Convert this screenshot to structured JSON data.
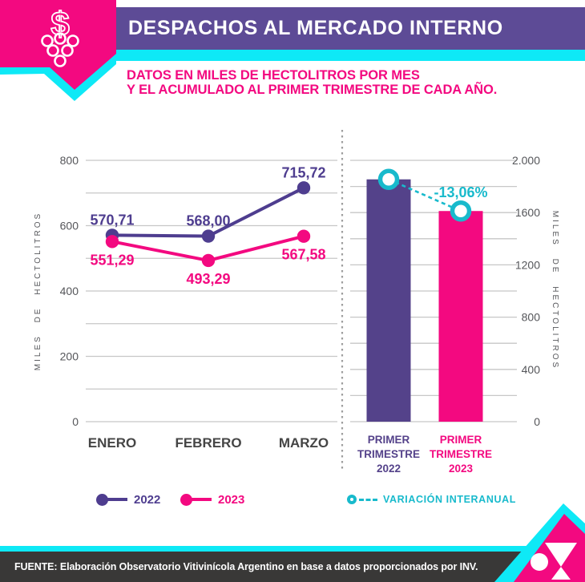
{
  "header": {
    "title": "DESPACHOS AL MERCADO INTERNO",
    "subtitle_line1": "DATOS EN MILES DE HECTOLITROS POR MES",
    "subtitle_line2": "Y EL ACUMULADO AL PRIMER TRIMESTRE DE CADA AÑO.",
    "badge_glyph": "$",
    "badge_icon": "grapes-dollar-icon"
  },
  "colors": {
    "header_purple": "#5d4b96",
    "magenta": "#f30980",
    "cyan_bright": "#0ee9f6",
    "cyan": "#18bacc",
    "series_purple": "#4e3d8f",
    "bar_purple": "#54428a",
    "grid": "#c7c7c7",
    "axis_text": "#55565a",
    "cat_text": "#454545",
    "separator": "#9e9e9e",
    "footer_bg": "#393837"
  },
  "chart_data": [
    {
      "type": "line",
      "categories": [
        "ENERO",
        "FEBRERO",
        "MARZO"
      ],
      "series": [
        {
          "name": "2022",
          "color": "#4e3d8f",
          "values": [
            570.71,
            568.0,
            715.72
          ],
          "labels": [
            "570,71",
            "568,00",
            "715,72"
          ]
        },
        {
          "name": "2023",
          "color": "#f30980",
          "values": [
            551.29,
            493.29,
            567.58
          ],
          "labels": [
            "551,29",
            "493,29",
            "567,58"
          ]
        }
      ],
      "ylabel": "MILES DE HECTOLITROS",
      "ylim": [
        0,
        800
      ],
      "grid_step": 100,
      "label_step": 200,
      "yticks": [
        "800",
        "600",
        "400",
        "200",
        "0"
      ],
      "grid": true,
      "legend_position": "bottom"
    },
    {
      "type": "bar",
      "categories": [
        "PRIMER TRIMESTRE 2022",
        "PRIMER TRIMESTRE 2023"
      ],
      "values": [
        1854.43,
        1612.16
      ],
      "bar_colors": [
        "#54428a",
        "#f30980"
      ],
      "ylabel": "MILES DE HECTOLITROS",
      "ylim": [
        0,
        2000
      ],
      "grid_step": 200,
      "label_step": 400,
      "yticks": [
        "2.000",
        "1600",
        "1200",
        "800",
        "400",
        "0"
      ],
      "grid": true,
      "annotation": {
        "label": "-13,06%",
        "name": "variación interanual"
      }
    }
  ],
  "legend": {
    "items": [
      {
        "label": "2022"
      },
      {
        "label": "2023"
      },
      {
        "label": "VARIACIÓN INTERANUAL"
      }
    ]
  },
  "footer": {
    "source": "FUENTE: Elaboración Observatorio Vitivinícola Argentino en base a datos proporcionados por INV.",
    "logo_icon": "ova-logo"
  }
}
